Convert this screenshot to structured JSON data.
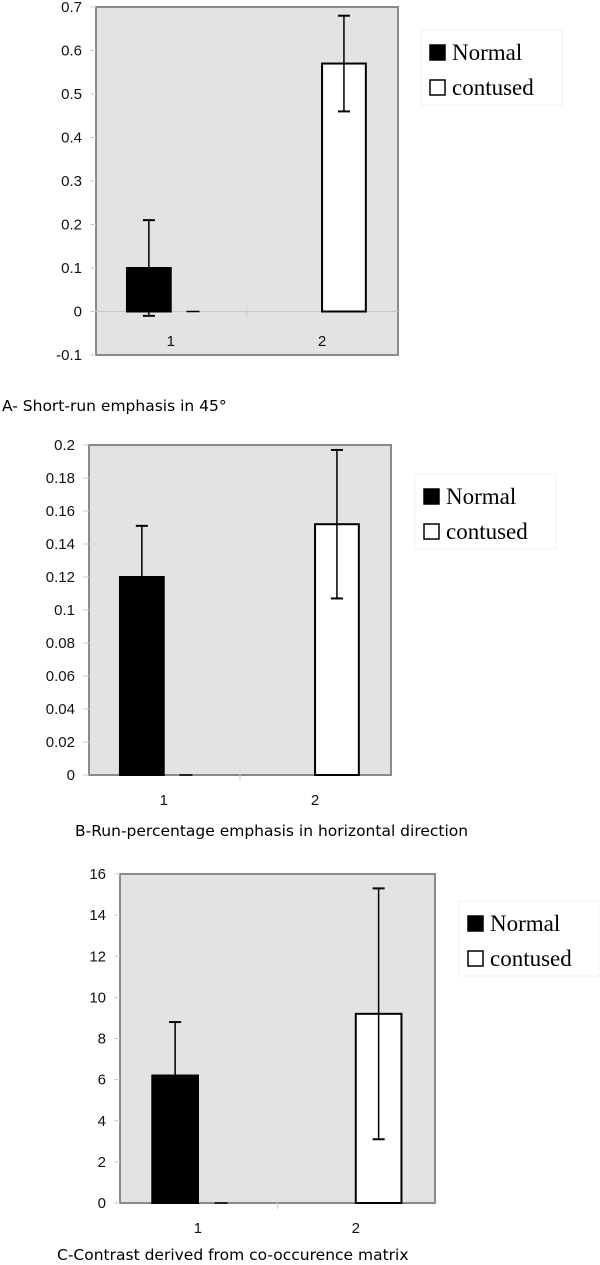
{
  "chart_data": [
    {
      "type": "bar",
      "title": "",
      "caption": "A- Short-run emphasis in 45°",
      "categories": [
        "1",
        "2"
      ],
      "series": [
        {
          "name": "Normal",
          "color": "#000000",
          "values": [
            0.1,
            null
          ],
          "errors": [
            0.11,
            null
          ]
        },
        {
          "name": "contused",
          "color": "#ffffff",
          "values": [
            0,
            0.57
          ],
          "errors": [
            null,
            0.11
          ]
        }
      ],
      "ylim": [
        -0.1,
        0.7
      ],
      "yticks": [
        "-0.1",
        "0",
        "0.1",
        "0.2",
        "0.3",
        "0.4",
        "0.5",
        "0.6",
        "0.7"
      ],
      "ytick_values": [
        -0.1,
        0,
        0.1,
        0.2,
        0.3,
        0.4,
        0.5,
        0.6,
        0.7
      ],
      "xlabel": "",
      "ylabel": "",
      "legend": "right",
      "plot_background": "#e3e3e3"
    },
    {
      "type": "bar",
      "title": "",
      "caption": "B-Run-percentage emphasis in horizontal direction",
      "categories": [
        "1",
        "2"
      ],
      "series": [
        {
          "name": "Normal",
          "color": "#000000",
          "values": [
            0.12,
            null
          ],
          "errors": [
            0.031,
            null
          ]
        },
        {
          "name": "contused",
          "color": "#ffffff",
          "values": [
            0,
            0.152
          ],
          "errors": [
            null,
            0.045
          ]
        }
      ],
      "ylim": [
        0,
        0.2
      ],
      "yticks": [
        "0",
        "0.02",
        "0.04",
        "0.06",
        "0.08",
        "0.1",
        "0.12",
        "0.14",
        "0.16",
        "0.18",
        "0.2"
      ],
      "ytick_values": [
        0,
        0.02,
        0.04,
        0.06,
        0.08,
        0.1,
        0.12,
        0.14,
        0.16,
        0.18,
        0.2
      ],
      "xlabel": "",
      "ylabel": "",
      "legend": "right",
      "plot_background": "#e3e3e3"
    },
    {
      "type": "bar",
      "title": "",
      "caption": "C-Contrast derived from co-occurence matrix",
      "categories": [
        "1",
        "2"
      ],
      "series": [
        {
          "name": "Normal",
          "color": "#000000",
          "values": [
            6.2,
            null
          ],
          "errors": [
            2.6,
            null
          ]
        },
        {
          "name": "contused",
          "color": "#ffffff",
          "values": [
            0,
            9.2
          ],
          "errors": [
            null,
            6.1
          ]
        }
      ],
      "ylim": [
        0,
        16
      ],
      "yticks": [
        "0",
        "2",
        "4",
        "6",
        "8",
        "10",
        "12",
        "14",
        "16"
      ],
      "ytick_values": [
        0,
        2,
        4,
        6,
        8,
        10,
        12,
        14,
        16
      ],
      "xlabel": "",
      "ylabel": "",
      "legend": "right",
      "plot_background": "#e3e3e3"
    }
  ]
}
